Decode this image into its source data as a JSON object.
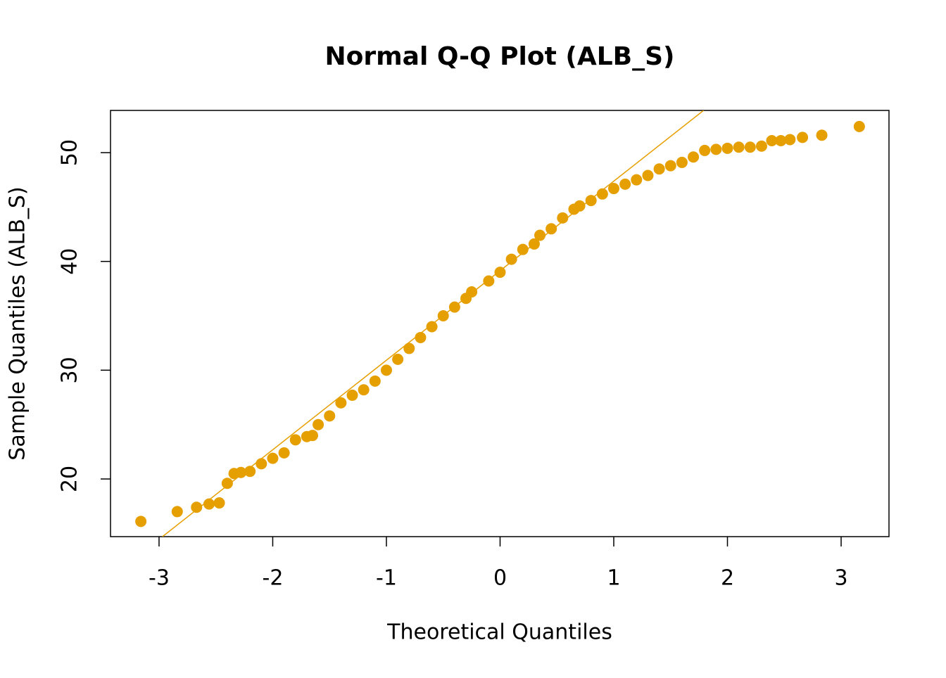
{
  "chart_data": {
    "type": "scatter",
    "title": "Normal Q-Q Plot (ALB_S)",
    "x_label": "Theoretical Quantiles",
    "y_label": "Sample Quantiles (ALB_S)",
    "color": "#E69F00",
    "x": [
      -3.16,
      -2.84,
      -2.67,
      -2.56,
      -2.47,
      -2.4,
      -2.34,
      -2.28,
      -2.2,
      -2.1,
      -2.0,
      -1.9,
      -1.8,
      -1.7,
      -1.65,
      -1.6,
      -1.5,
      -1.4,
      -1.3,
      -1.2,
      -1.1,
      -1.0,
      -0.9,
      -0.8,
      -0.7,
      -0.6,
      -0.5,
      -0.4,
      -0.3,
      -0.25,
      -0.1,
      0,
      0.1,
      0.2,
      0.3,
      0.35,
      0.45,
      0.55,
      0.65,
      0.7,
      0.8,
      0.9,
      1.0,
      1.1,
      1.2,
      1.3,
      1.4,
      1.5,
      1.6,
      1.7,
      1.8,
      1.9,
      2.0,
      2.1,
      2.2,
      2.3,
      2.39,
      2.47,
      2.55,
      2.66,
      2.83,
      3.16
    ],
    "values": [
      16.1,
      17.0,
      17.4,
      17.7,
      17.8,
      19.6,
      20.5,
      20.6,
      20.7,
      21.4,
      21.9,
      22.4,
      23.6,
      23.9,
      24.0,
      25.0,
      25.8,
      27.0,
      27.7,
      28.2,
      29.0,
      30.0,
      31.0,
      32.0,
      33.0,
      34.0,
      35.0,
      35.8,
      36.6,
      37.2,
      38.2,
      39.0,
      40.2,
      41.1,
      41.6,
      42.4,
      43.0,
      44.0,
      44.8,
      45.1,
      45.6,
      46.2,
      46.7,
      47.1,
      47.5,
      47.9,
      48.5,
      48.8,
      49.1,
      49.6,
      50.2,
      50.3,
      50.4,
      50.5,
      50.5,
      50.6,
      51.1,
      51.1,
      51.2,
      51.4,
      51.6,
      52.4
    ],
    "reference_line": {
      "x": [
        -2.97,
        1.79
      ],
      "y": [
        14.7,
        53.88
      ]
    },
    "xlim": [
      -3.427,
      3.421
    ],
    "ylim": [
      14.7,
      53.88
    ],
    "xticks": [
      -3,
      -2,
      -1,
      0,
      1,
      2,
      3
    ],
    "yticks": [
      20,
      30,
      40,
      50
    ]
  }
}
